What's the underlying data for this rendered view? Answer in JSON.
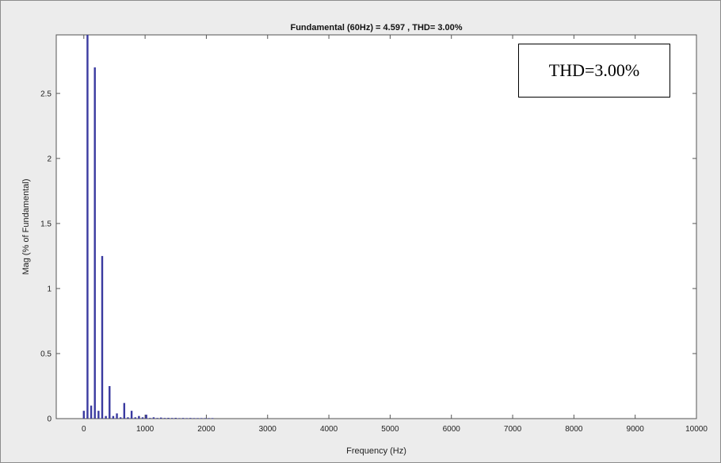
{
  "chart_data": {
    "type": "bar",
    "title": "Fundamental (60Hz) = 4.597 , THD= 3.00%",
    "xlabel": "Frequency (Hz)",
    "ylabel": "Mag (% of Fundamental)",
    "xlim": [
      -450,
      10000
    ],
    "ylim": [
      0,
      2.95
    ],
    "xticks": [
      0,
      1000,
      2000,
      3000,
      4000,
      5000,
      6000,
      7000,
      8000,
      9000,
      10000
    ],
    "yticks": [
      0,
      0.5,
      1,
      1.5,
      2,
      2.5
    ],
    "bar_color": "#3a3aa0",
    "annotation": "THD=3.00%",
    "series": [
      {
        "x": [
          0,
          60,
          120,
          180,
          240,
          300,
          360,
          420,
          480,
          540,
          600,
          660,
          720,
          780,
          840,
          900,
          960,
          1020,
          1080,
          1140,
          1200,
          1260,
          1320,
          1380,
          1440,
          1500,
          1560,
          1620,
          1680,
          1740,
          1800,
          1860,
          1920,
          1980,
          2040,
          2100
        ],
        "values": [
          0.06,
          2.95,
          0.1,
          2.7,
          0.06,
          1.25,
          0.02,
          0.25,
          0.02,
          0.04,
          0.01,
          0.12,
          0.01,
          0.06,
          0.01,
          0.02,
          0.01,
          0.03,
          0.005,
          0.01,
          0.005,
          0.008,
          0.005,
          0.006,
          0.005,
          0.006,
          0.004,
          0.005,
          0.004,
          0.005,
          0.004,
          0.004,
          0.004,
          0.004,
          0.004,
          0.004
        ]
      }
    ]
  }
}
